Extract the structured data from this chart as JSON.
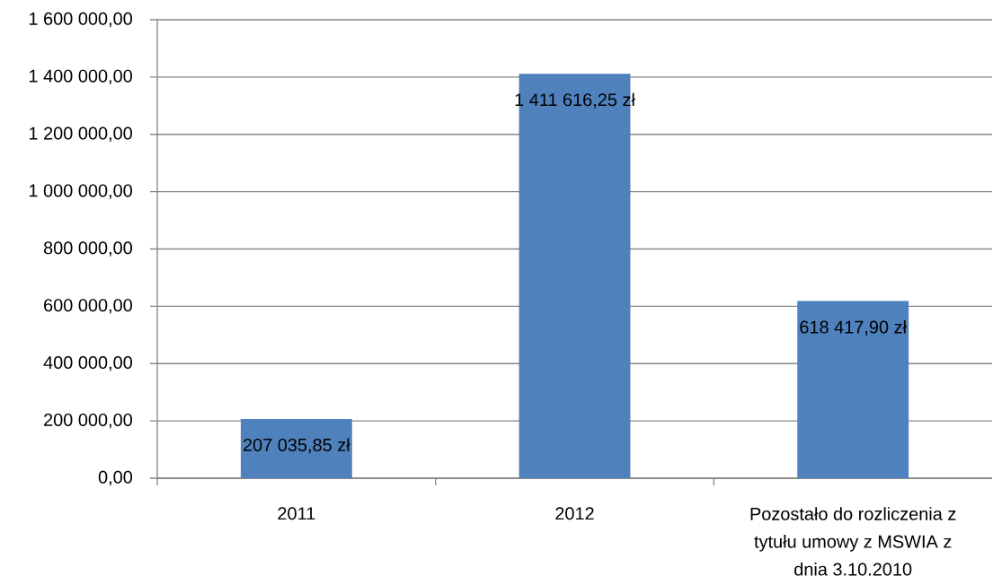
{
  "chart_data": {
    "type": "bar",
    "categories": [
      "2011",
      "2012",
      "Pozostało do rozliczenia z tytułu umowy z MSWIA z dnia 3.10.2010"
    ],
    "values": [
      207035.85,
      1411616.25,
      618417.9
    ],
    "value_labels": [
      "207 035,85 zł",
      "1 411 616,25 zł",
      "618 417,90 zł"
    ],
    "color": "#4f81bd",
    "ylim": [
      0,
      1600000
    ],
    "yticks": [
      {
        "value": 0,
        "label": "0,00"
      },
      {
        "value": 200000,
        "label": "200 000,00"
      },
      {
        "value": 400000,
        "label": "400 000,00"
      },
      {
        "value": 600000,
        "label": "600 000,00"
      },
      {
        "value": 800000,
        "label": "800 000,00"
      },
      {
        "value": 1000000,
        "label": "1 000 000,00"
      },
      {
        "value": 1200000,
        "label": "1 200 000,00"
      },
      {
        "value": 1400000,
        "label": "1 400 000,00"
      },
      {
        "value": 1600000,
        "label": "1 600 000,00"
      }
    ],
    "grid": "y"
  }
}
